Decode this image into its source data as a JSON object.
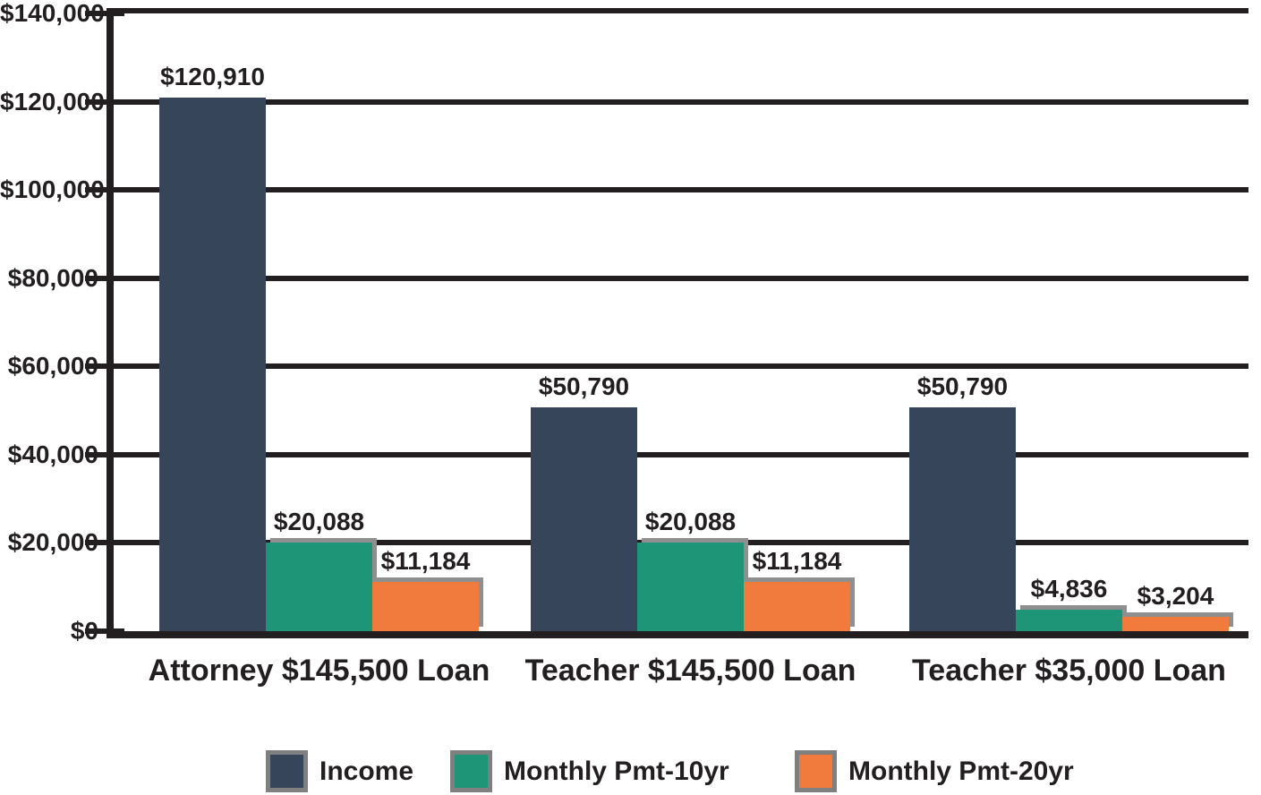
{
  "chart_data": {
    "type": "bar",
    "title": "",
    "xlabel": "",
    "ylabel": "",
    "categories": [
      "Attorney $145,500 Loan",
      "Teacher $145,500 Loan",
      "Teacher $35,000 Loan"
    ],
    "series": [
      {
        "name": "Income",
        "color": "#36455A",
        "values": [
          120910,
          50790,
          50790
        ],
        "labels": [
          "$120,910",
          "$50,790",
          "$50,790"
        ]
      },
      {
        "name": "Monthly Pmt-10yr",
        "color": "#1F9577",
        "values": [
          20088,
          20088,
          4836
        ],
        "labels": [
          "$20,088",
          "$20,088",
          "$4,836"
        ]
      },
      {
        "name": "Monthly Pmt-20yr",
        "color": "#F07B3C",
        "values": [
          11184,
          11184,
          3204
        ],
        "labels": [
          "$11,184",
          "$11,184",
          "$3,204"
        ]
      }
    ],
    "ylim": [
      0,
      140000
    ],
    "yticks": [
      {
        "value": 140000,
        "label": "$140,000"
      },
      {
        "value": 120000,
        "label": "$120,000"
      },
      {
        "value": 100000,
        "label": "$100,000"
      },
      {
        "value": 80000,
        "label": "$80,000"
      },
      {
        "value": 60000,
        "label": "$60,000"
      },
      {
        "value": 40000,
        "label": "$40,000"
      },
      {
        "value": 20000,
        "label": "$20,000"
      },
      {
        "value": 0,
        "label": "$0"
      }
    ],
    "grid": true,
    "legend_position": "bottom"
  },
  "colors": {
    "background": "#FFFFFF",
    "text": "#231F20",
    "axis": "#231F20",
    "gridline": "#231F20",
    "bar_shadow": "#8F8F8F",
    "legend_swatch_border": "#7F7F7F"
  }
}
